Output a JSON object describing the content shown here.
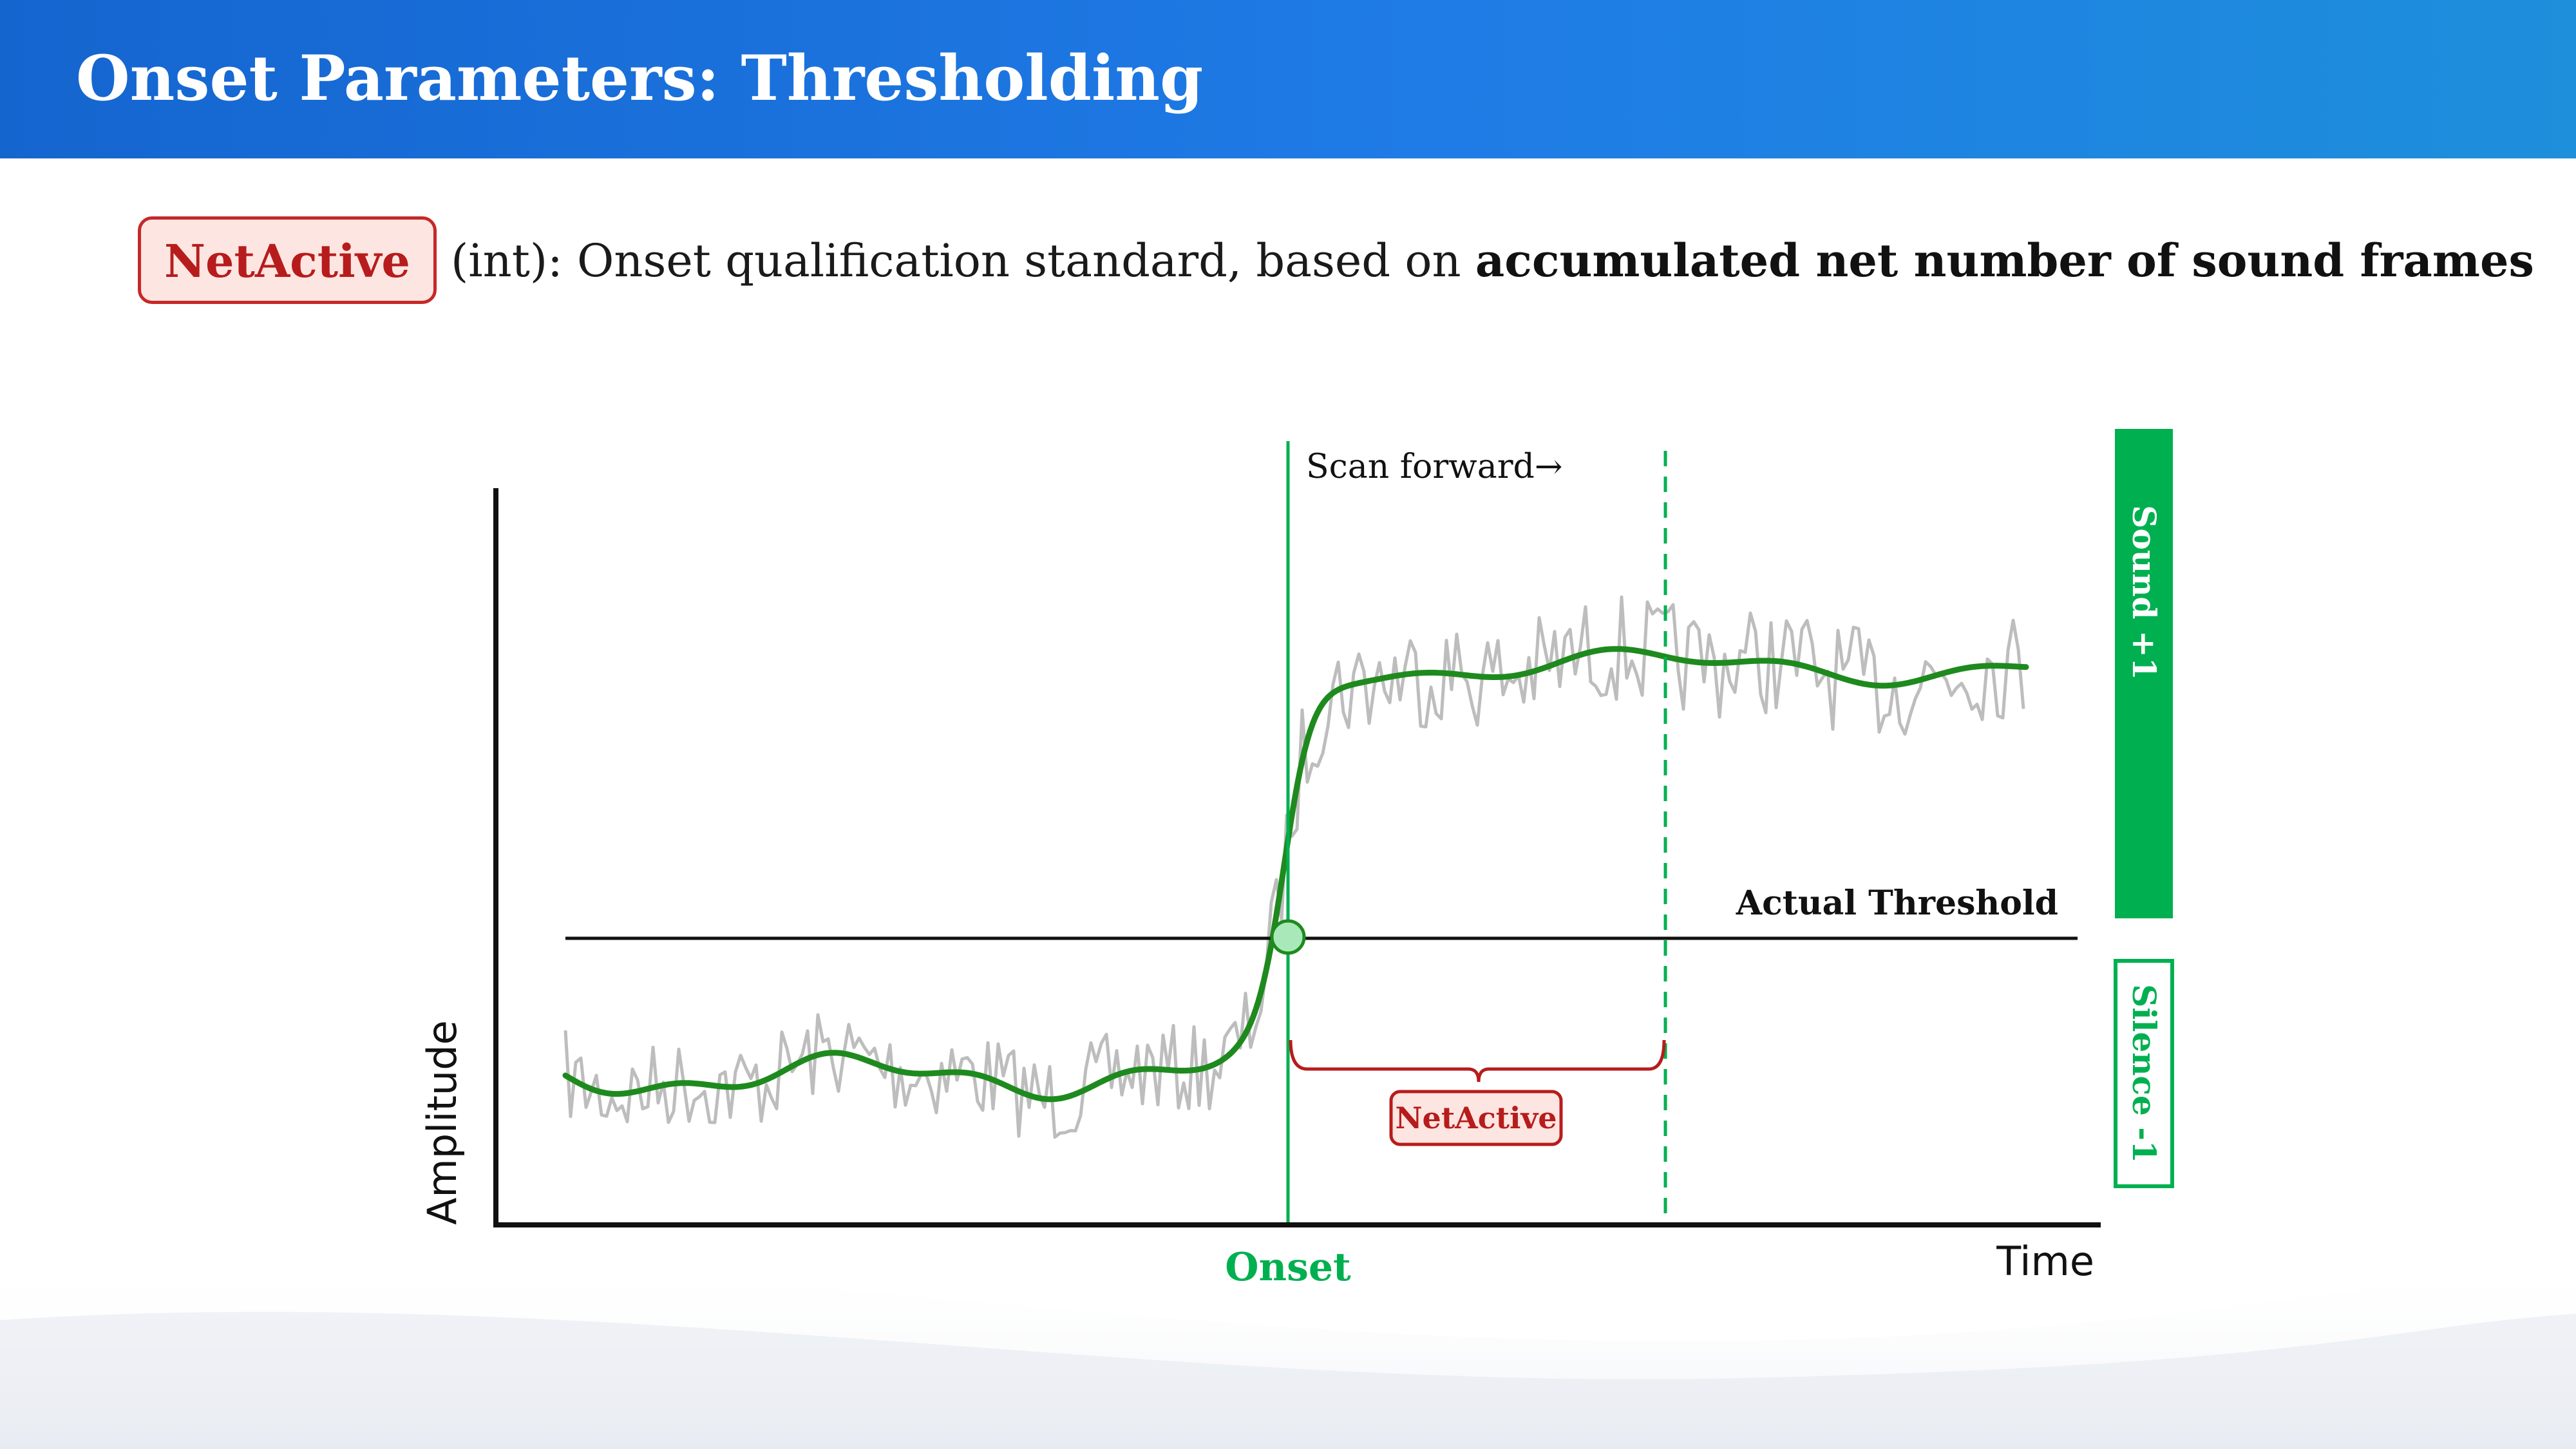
{
  "header": {
    "title": "Onset Parameters: Thresholding"
  },
  "param": {
    "name": "NetActive",
    "type": "(int): Onset qualification standard, based on",
    "description_bold": "accumulated net number of sound frames"
  },
  "figure": {
    "ylabel": "Amplitude",
    "xlabel": "Time",
    "threshold_label": "Actual Threshold",
    "scan_label": "Scan forward→",
    "onset_label": "Onset",
    "brace_badge": "NetActive",
    "sound_label": "Sound +1",
    "silence_label": "Silence -1",
    "colors": {
      "green": "#00b050",
      "smooth_green": "#1e8a1e",
      "raw_gray": "#bdbdbd",
      "red": "#b71c1c",
      "red_fill": "#fde5e1"
    }
  }
}
